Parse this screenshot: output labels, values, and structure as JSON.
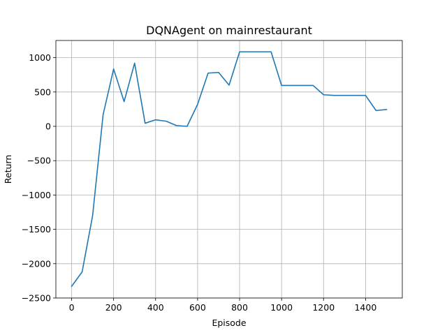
{
  "chart_data": {
    "type": "line",
    "title": "DQNAgent on mainrestaurant",
    "xlabel": "Episode",
    "ylabel": "Return",
    "xlim": [
      -75,
      1575
    ],
    "ylim": [
      -2500,
      1250
    ],
    "xticks": [
      0,
      200,
      400,
      600,
      800,
      1000,
      1200,
      1400
    ],
    "yticks": [
      -2500,
      -2000,
      -1500,
      -1000,
      -500,
      0,
      500,
      1000
    ],
    "grid": true,
    "colors": {
      "series": "#1f77b4"
    },
    "series": [
      {
        "x": [
          0,
          50,
          100,
          150,
          200,
          250,
          300,
          350,
          400,
          450,
          500,
          550,
          600,
          650,
          700,
          750,
          800,
          850,
          900,
          950,
          1000,
          1050,
          1100,
          1150,
          1200,
          1250,
          1300,
          1350,
          1400,
          1450,
          1500
        ],
        "y": [
          -2330,
          -2120,
          -1300,
          170,
          835,
          360,
          920,
          45,
          95,
          75,
          10,
          0,
          320,
          775,
          785,
          600,
          1085,
          1085,
          1085,
          1085,
          595,
          595,
          595,
          595,
          460,
          450,
          450,
          450,
          450,
          230,
          245
        ]
      }
    ]
  }
}
